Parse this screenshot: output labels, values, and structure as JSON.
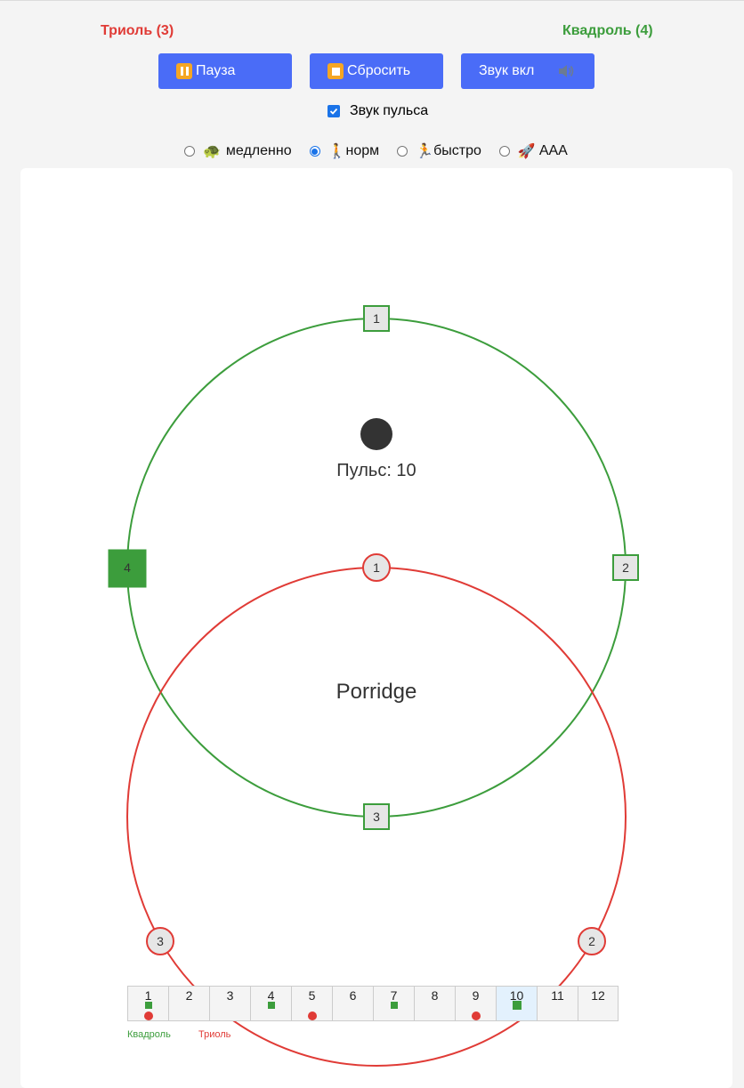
{
  "colors": {
    "triplet": "#e03b36",
    "quad": "#3c9d3c",
    "accent": "#4a6cf7"
  },
  "labels": {
    "triplet": "Триоль (3)",
    "quad": "Квадроль (4)"
  },
  "buttons": {
    "pause": "Пауза",
    "reset": "Сбросить",
    "sound": "Звук вкл"
  },
  "pulse_sound": {
    "label": "Звук пульса",
    "checked": true
  },
  "speeds": [
    {
      "emoji": "🐢",
      "label": "медленно",
      "checked": false
    },
    {
      "emoji": "🚶",
      "label": "норм",
      "checked": true
    },
    {
      "emoji": "🏃",
      "label": "быстро",
      "checked": false
    },
    {
      "emoji": "🚀",
      "label": "AAA",
      "checked": false
    }
  ],
  "viz": {
    "pulse_label": "Пульс: 10",
    "center_word": "Porridge",
    "quad_markers": [
      "1",
      "2",
      "3",
      "4"
    ],
    "triplet_markers": [
      "1",
      "2",
      "3"
    ],
    "active_quad": "4"
  },
  "grid": {
    "cells": [
      "1",
      "2",
      "3",
      "4",
      "5",
      "6",
      "7",
      "8",
      "9",
      "10",
      "11",
      "12"
    ],
    "quad_beats": [
      1,
      4,
      7,
      10
    ],
    "triplet_beats": [
      1,
      5,
      9
    ],
    "active": 10
  },
  "legend": {
    "quad": "Квадроль",
    "triplet": "Триоль"
  }
}
